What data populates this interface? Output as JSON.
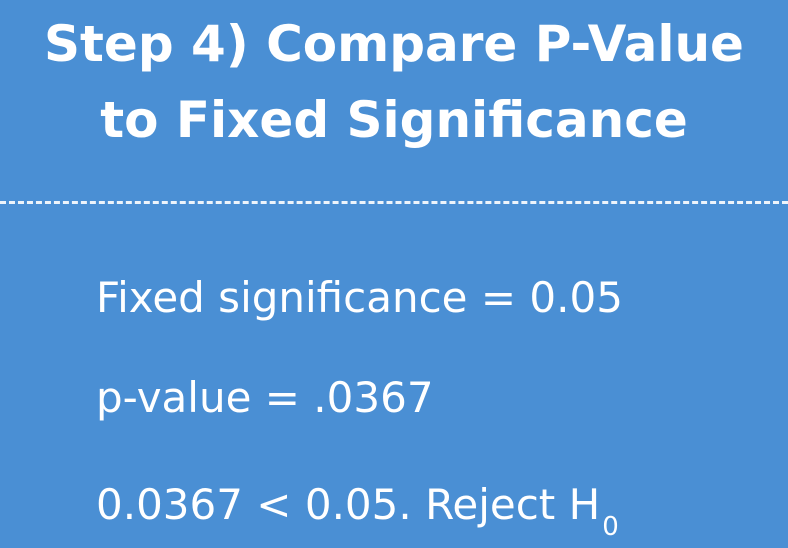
{
  "title": {
    "line1": "Step 4) Compare P-Value",
    "line2": "to Fixed Significance"
  },
  "lines": {
    "fixed_significance": "Fixed significance = 0.05",
    "p_value": "p-value = .0367",
    "comparison_main": "0.0367 < 0.05. Reject H",
    "comparison_subscript": "0"
  },
  "colors": {
    "background": "#4a8fd4",
    "text": "#ffffff"
  }
}
